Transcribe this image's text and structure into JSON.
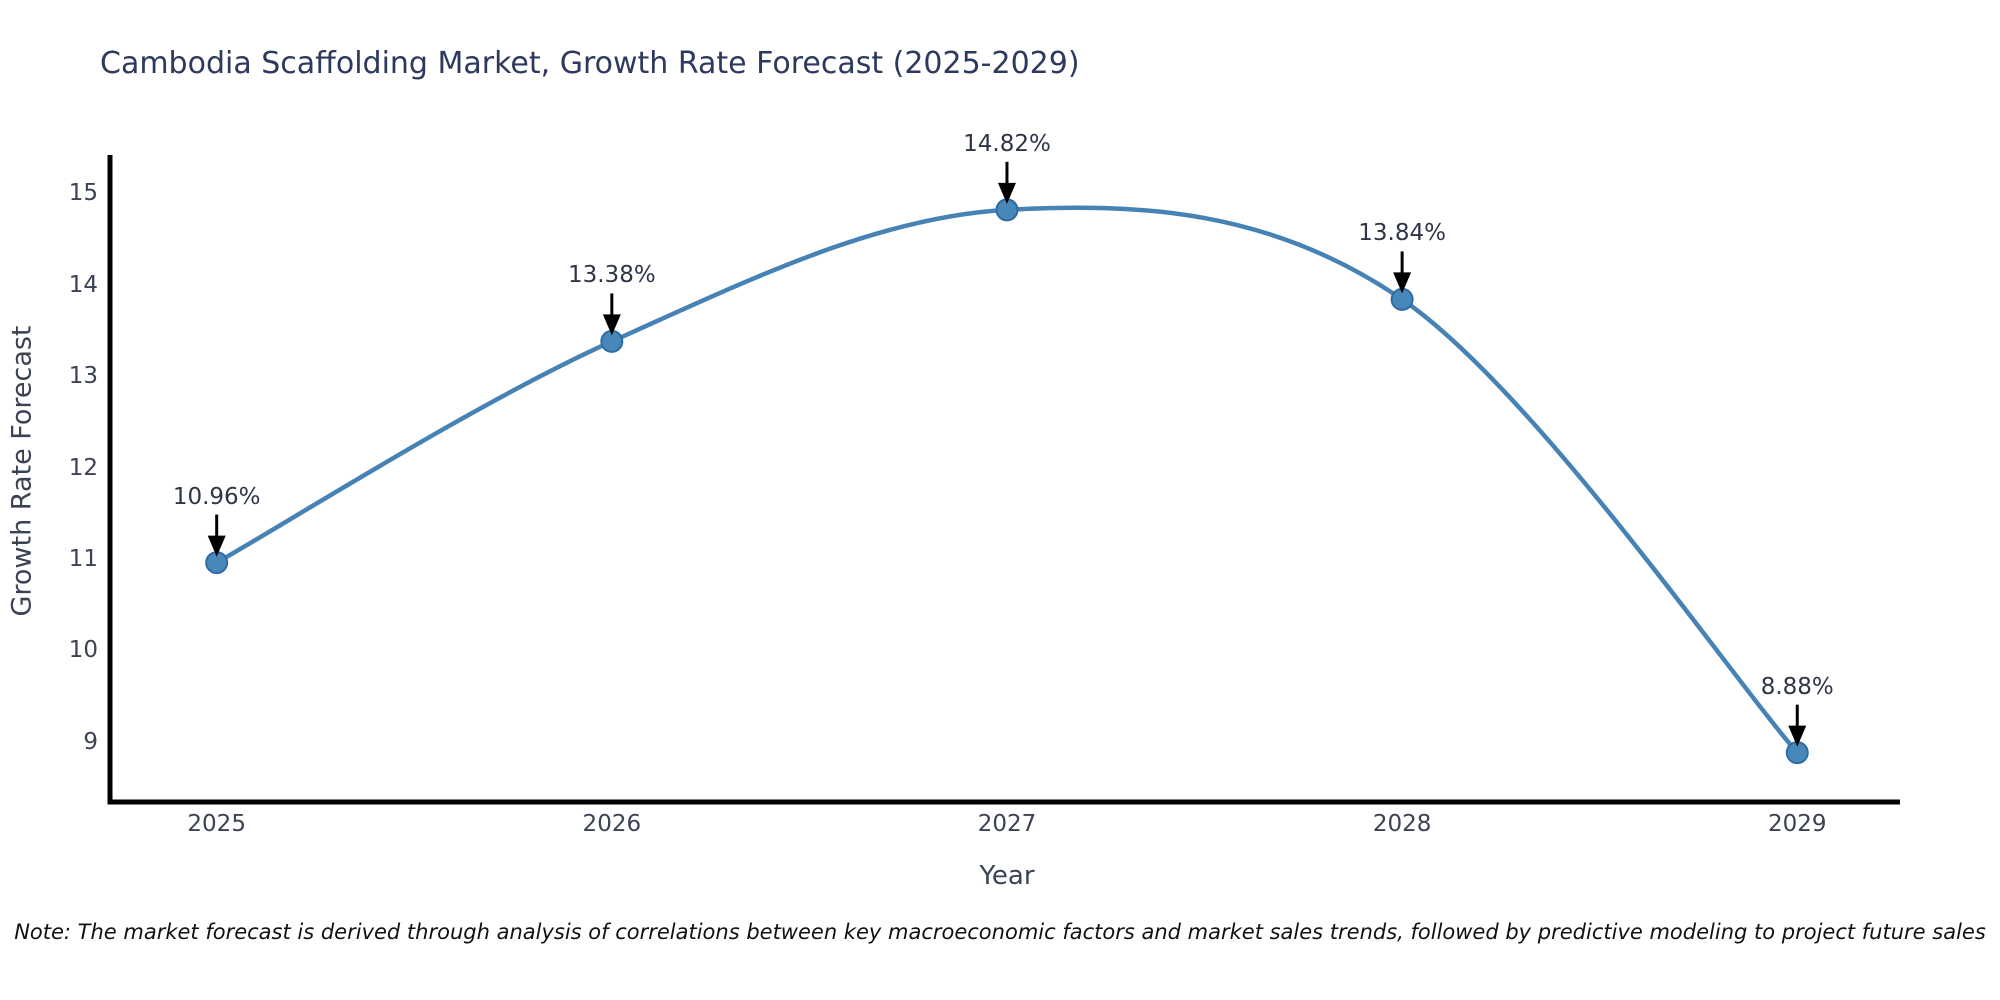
{
  "chart_data": {
    "type": "line",
    "title": "Cambodia Scaffolding Market, Growth Rate Forecast (2025-2029)",
    "xlabel": "Year",
    "ylabel": "Growth Rate Forecast",
    "x": [
      2025,
      2026,
      2027,
      2028,
      2029
    ],
    "categories": [
      "2025",
      "2026",
      "2027",
      "2028",
      "2029"
    ],
    "values": [
      10.96,
      13.38,
      14.82,
      13.84,
      8.88
    ],
    "point_labels": [
      "10.96%",
      "13.38%",
      "14.82%",
      "13.84%",
      "8.88%"
    ],
    "yticks": [
      9,
      10,
      11,
      12,
      13,
      14,
      15
    ],
    "xlim": [
      2024.73,
      2029.26
    ],
    "ylim": [
      8.34,
      15.42
    ],
    "grid": false,
    "legend_position": "none",
    "smooth_spline": true,
    "colors": {
      "line": "#4682b4",
      "marker_fill": "#4787ba",
      "marker_edge": "#2f6ba3",
      "axis_spine": "#000000",
      "annotation_arrow": "#000000",
      "annotation_text": "#2e3546",
      "tick_text": "#3a4254",
      "title_text": "#2d3a5e"
    }
  },
  "footnote": "Note: The market forecast is derived through analysis of correlations between key macroeconomic factors and market sales trends, followed by predictive modeling to project future sales"
}
